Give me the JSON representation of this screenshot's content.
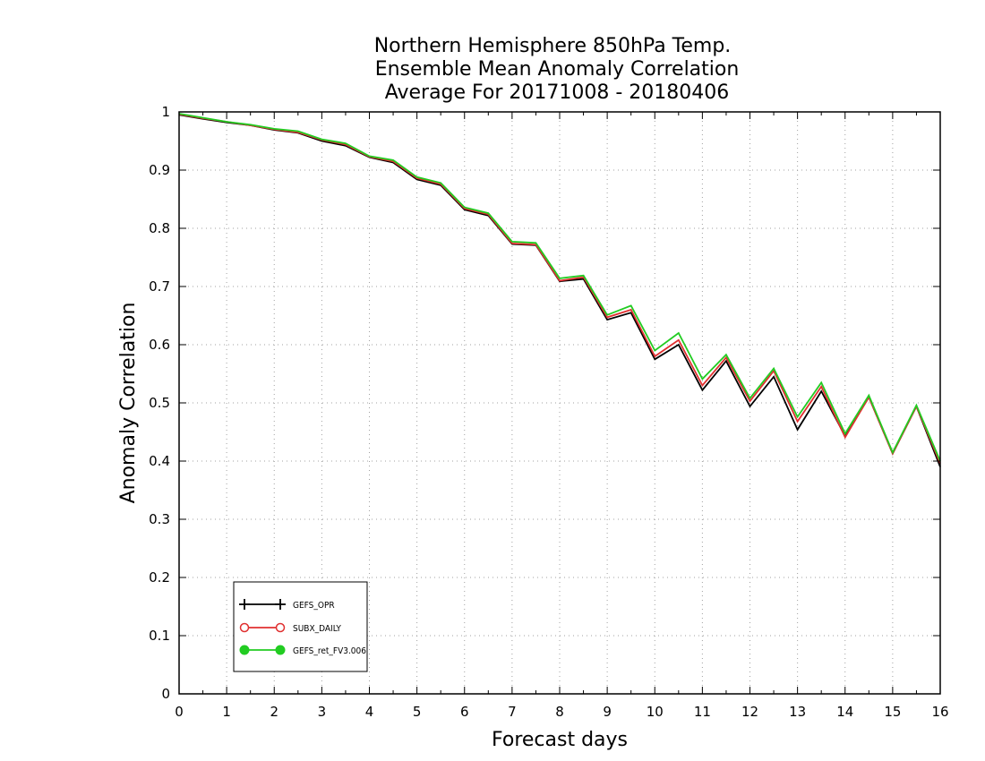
{
  "chart_data": {
    "type": "line",
    "title": [
      "Northern Hemisphere 850hPa Temp.",
      "Ensemble Mean Anomaly Correlation",
      "Average For 20171008 - 20180406"
    ],
    "xlabel": "Forecast days",
    "ylabel": "Anomaly Correlation",
    "xlim": [
      0,
      16
    ],
    "ylim": [
      0,
      1
    ],
    "xticks": [
      "0",
      "1",
      "2",
      "3",
      "4",
      "5",
      "6",
      "7",
      "8",
      "9",
      "10",
      "11",
      "12",
      "13",
      "14",
      "15",
      "16"
    ],
    "yticks": [
      "0",
      "0.1",
      "0.2",
      "0.3",
      "0.4",
      "0.5",
      "0.6",
      "0.7",
      "0.8",
      "0.9",
      "1"
    ],
    "grid": true,
    "legend_position": "bottom-left",
    "x": [
      0,
      0.5,
      1,
      1.5,
      2,
      2.5,
      3,
      3.5,
      4,
      4.5,
      5,
      5.5,
      6,
      6.5,
      7,
      7.5,
      8,
      8.5,
      9,
      9.5,
      10,
      10.5,
      11,
      11.5,
      12,
      12.5,
      13,
      13.5,
      14,
      14.5,
      15,
      15.5,
      16
    ],
    "series": [
      {
        "name": "GEFS_OPR",
        "color": "#000000",
        "marker": "plus",
        "values": [
          0.995,
          0.988,
          0.982,
          0.977,
          0.969,
          0.964,
          0.95,
          0.942,
          0.922,
          0.913,
          0.884,
          0.874,
          0.832,
          0.822,
          0.773,
          0.771,
          0.709,
          0.713,
          0.643,
          0.655,
          0.575,
          0.6,
          0.522,
          0.572,
          0.494,
          0.545,
          0.454,
          0.52,
          0.443,
          0.51,
          0.413,
          0.494,
          0.39
        ]
      },
      {
        "name": "SUBX_DAILY",
        "color": "#e03030",
        "marker": "open-circle",
        "values": [
          0.996,
          0.989,
          0.983,
          0.977,
          0.97,
          0.965,
          0.952,
          0.944,
          0.923,
          0.915,
          0.886,
          0.876,
          0.834,
          0.824,
          0.774,
          0.772,
          0.71,
          0.716,
          0.647,
          0.66,
          0.58,
          0.608,
          0.53,
          0.578,
          0.503,
          0.555,
          0.468,
          0.528,
          0.441,
          0.51,
          0.413,
          0.494,
          0.396
        ]
      },
      {
        "name": "GEFS_ret_FV3.006",
        "color": "#22cc22",
        "marker": "filled-circle",
        "values": [
          0.997,
          0.99,
          0.983,
          0.978,
          0.971,
          0.967,
          0.953,
          0.946,
          0.924,
          0.917,
          0.888,
          0.878,
          0.836,
          0.826,
          0.777,
          0.775,
          0.714,
          0.719,
          0.651,
          0.667,
          0.59,
          0.62,
          0.541,
          0.583,
          0.508,
          0.559,
          0.476,
          0.535,
          0.447,
          0.513,
          0.415,
          0.496,
          0.4
        ]
      }
    ]
  }
}
